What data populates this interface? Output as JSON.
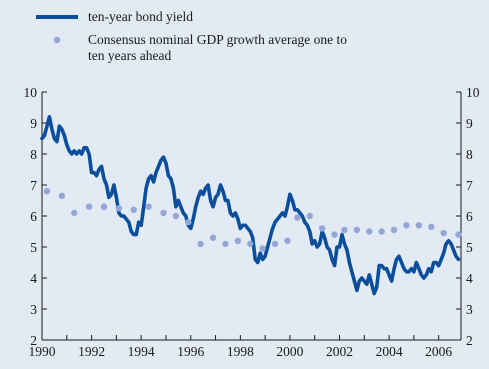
{
  "legend": {
    "series_0": "ten-year bond yield",
    "series_1_line1": "Consensus nominal GDP growth average one to",
    "series_1_line2": "ten years ahead"
  },
  "colors": {
    "background": "#e2eaf3",
    "bond_line": "#0b4f9c",
    "consensus_dots": "#93a6d6",
    "axis": "#1a1a1a"
  },
  "chart_data": {
    "type": "line",
    "title": "",
    "xlabel": "",
    "ylabel": "",
    "xlim": [
      1990,
      2006.9
    ],
    "ylim": [
      2,
      10
    ],
    "x_ticks": [
      "1990",
      "1992",
      "1994",
      "1996",
      "1998",
      "2000",
      "2002",
      "2004",
      "2006"
    ],
    "y_ticks": [
      "2",
      "3",
      "4",
      "5",
      "6",
      "7",
      "8",
      "9",
      "10"
    ],
    "grid": false,
    "legend_position": "top-left",
    "series": [
      {
        "name": "ten-year bond yield",
        "style": "line",
        "points": [
          [
            1990.0,
            8.5
          ],
          [
            1990.1,
            8.6
          ],
          [
            1990.2,
            8.9
          ],
          [
            1990.3,
            9.2
          ],
          [
            1990.4,
            8.8
          ],
          [
            1990.5,
            8.5
          ],
          [
            1990.6,
            8.4
          ],
          [
            1990.7,
            8.9
          ],
          [
            1990.8,
            8.8
          ],
          [
            1990.9,
            8.6
          ],
          [
            1991.0,
            8.3
          ],
          [
            1991.1,
            8.1
          ],
          [
            1991.2,
            8.0
          ],
          [
            1991.3,
            8.1
          ],
          [
            1991.4,
            8.0
          ],
          [
            1991.5,
            8.1
          ],
          [
            1991.6,
            8.0
          ],
          [
            1991.7,
            8.2
          ],
          [
            1991.8,
            8.2
          ],
          [
            1991.9,
            8.0
          ],
          [
            1992.0,
            7.4
          ],
          [
            1992.1,
            7.4
          ],
          [
            1992.2,
            7.3
          ],
          [
            1992.3,
            7.5
          ],
          [
            1992.4,
            7.6
          ],
          [
            1992.5,
            7.2
          ],
          [
            1992.6,
            7.0
          ],
          [
            1992.7,
            6.6
          ],
          [
            1992.8,
            6.7
          ],
          [
            1992.9,
            7.0
          ],
          [
            1993.0,
            6.6
          ],
          [
            1993.1,
            6.1
          ],
          [
            1993.2,
            6.0
          ],
          [
            1993.3,
            6.0
          ],
          [
            1993.4,
            5.9
          ],
          [
            1993.5,
            5.8
          ],
          [
            1993.6,
            5.5
          ],
          [
            1993.7,
            5.4
          ],
          [
            1993.8,
            5.4
          ],
          [
            1993.9,
            5.8
          ],
          [
            1994.0,
            5.7
          ],
          [
            1994.1,
            6.3
          ],
          [
            1994.2,
            6.9
          ],
          [
            1994.3,
            7.2
          ],
          [
            1994.4,
            7.3
          ],
          [
            1994.5,
            7.1
          ],
          [
            1994.6,
            7.4
          ],
          [
            1994.7,
            7.6
          ],
          [
            1994.8,
            7.8
          ],
          [
            1994.9,
            7.9
          ],
          [
            1995.0,
            7.7
          ],
          [
            1995.1,
            7.3
          ],
          [
            1995.2,
            7.2
          ],
          [
            1995.3,
            6.9
          ],
          [
            1995.4,
            6.3
          ],
          [
            1995.5,
            6.5
          ],
          [
            1995.6,
            6.3
          ],
          [
            1995.7,
            6.1
          ],
          [
            1995.8,
            6.0
          ],
          [
            1995.9,
            5.7
          ],
          [
            1996.0,
            5.6
          ],
          [
            1996.1,
            5.9
          ],
          [
            1996.2,
            6.3
          ],
          [
            1996.3,
            6.6
          ],
          [
            1996.4,
            6.8
          ],
          [
            1996.5,
            6.7
          ],
          [
            1996.6,
            6.9
          ],
          [
            1996.7,
            7.0
          ],
          [
            1996.8,
            6.5
          ],
          [
            1996.9,
            6.3
          ],
          [
            1997.0,
            6.6
          ],
          [
            1997.1,
            6.7
          ],
          [
            1997.2,
            7.0
          ],
          [
            1997.3,
            6.8
          ],
          [
            1997.4,
            6.5
          ],
          [
            1997.5,
            6.5
          ],
          [
            1997.6,
            6.1
          ],
          [
            1997.7,
            6.0
          ],
          [
            1997.8,
            6.1
          ],
          [
            1997.9,
            5.9
          ],
          [
            1998.0,
            5.6
          ],
          [
            1998.1,
            5.7
          ],
          [
            1998.2,
            5.7
          ],
          [
            1998.3,
            5.6
          ],
          [
            1998.4,
            5.5
          ],
          [
            1998.5,
            5.3
          ],
          [
            1998.6,
            4.6
          ],
          [
            1998.7,
            4.5
          ],
          [
            1998.8,
            4.8
          ],
          [
            1998.9,
            4.6
          ],
          [
            1999.0,
            4.7
          ],
          [
            1999.1,
            5.0
          ],
          [
            1999.2,
            5.3
          ],
          [
            1999.3,
            5.6
          ],
          [
            1999.4,
            5.8
          ],
          [
            1999.5,
            5.9
          ],
          [
            1999.6,
            6.0
          ],
          [
            1999.7,
            6.1
          ],
          [
            1999.8,
            6.0
          ],
          [
            1999.9,
            6.3
          ],
          [
            2000.0,
            6.7
          ],
          [
            2000.1,
            6.5
          ],
          [
            2000.2,
            6.2
          ],
          [
            2000.3,
            6.2
          ],
          [
            2000.4,
            6.1
          ],
          [
            2000.5,
            6.0
          ],
          [
            2000.6,
            5.8
          ],
          [
            2000.7,
            5.7
          ],
          [
            2000.8,
            5.5
          ],
          [
            2000.9,
            5.1
          ],
          [
            2001.0,
            5.2
          ],
          [
            2001.1,
            5.0
          ],
          [
            2001.2,
            5.1
          ],
          [
            2001.3,
            5.5
          ],
          [
            2001.4,
            5.3
          ],
          [
            2001.5,
            5.0
          ],
          [
            2001.6,
            4.9
          ],
          [
            2001.7,
            4.6
          ],
          [
            2001.8,
            4.4
          ],
          [
            2001.9,
            5.0
          ],
          [
            2002.0,
            5.0
          ],
          [
            2002.1,
            5.4
          ],
          [
            2002.2,
            5.1
          ],
          [
            2002.3,
            4.9
          ],
          [
            2002.4,
            4.5
          ],
          [
            2002.5,
            4.2
          ],
          [
            2002.6,
            3.9
          ],
          [
            2002.7,
            3.6
          ],
          [
            2002.8,
            3.9
          ],
          [
            2002.9,
            4.0
          ],
          [
            2003.0,
            3.9
          ],
          [
            2003.1,
            3.8
          ],
          [
            2003.2,
            4.1
          ],
          [
            2003.3,
            3.8
          ],
          [
            2003.4,
            3.5
          ],
          [
            2003.5,
            3.7
          ],
          [
            2003.6,
            4.4
          ],
          [
            2003.7,
            4.4
          ],
          [
            2003.8,
            4.3
          ],
          [
            2003.9,
            4.3
          ],
          [
            2004.0,
            4.1
          ],
          [
            2004.1,
            3.9
          ],
          [
            2004.2,
            4.3
          ],
          [
            2004.3,
            4.6
          ],
          [
            2004.4,
            4.7
          ],
          [
            2004.5,
            4.5
          ],
          [
            2004.6,
            4.3
          ],
          [
            2004.7,
            4.2
          ],
          [
            2004.8,
            4.2
          ],
          [
            2004.9,
            4.3
          ],
          [
            2005.0,
            4.2
          ],
          [
            2005.1,
            4.5
          ],
          [
            2005.2,
            4.3
          ],
          [
            2005.3,
            4.1
          ],
          [
            2005.4,
            4.0
          ],
          [
            2005.5,
            4.1
          ],
          [
            2005.6,
            4.3
          ],
          [
            2005.7,
            4.2
          ],
          [
            2005.8,
            4.5
          ],
          [
            2005.9,
            4.5
          ],
          [
            2006.0,
            4.4
          ],
          [
            2006.1,
            4.6
          ],
          [
            2006.2,
            4.8
          ],
          [
            2006.3,
            5.1
          ],
          [
            2006.4,
            5.2
          ],
          [
            2006.5,
            5.1
          ],
          [
            2006.6,
            4.9
          ],
          [
            2006.7,
            4.7
          ],
          [
            2006.8,
            4.6
          ]
        ]
      },
      {
        "name": "Consensus nominal GDP growth average one to ten years ahead",
        "style": "dots",
        "points": [
          [
            1990.2,
            6.8
          ],
          [
            1990.8,
            6.65
          ],
          [
            1991.3,
            6.1
          ],
          [
            1991.9,
            6.3
          ],
          [
            1992.5,
            6.3
          ],
          [
            1993.1,
            6.25
          ],
          [
            1993.7,
            6.2
          ],
          [
            1994.3,
            6.3
          ],
          [
            1994.9,
            6.1
          ],
          [
            1995.4,
            6.0
          ],
          [
            1995.9,
            5.8
          ],
          [
            1996.4,
            5.1
          ],
          [
            1996.9,
            5.3
          ],
          [
            1997.4,
            5.1
          ],
          [
            1997.9,
            5.2
          ],
          [
            1998.4,
            5.1
          ],
          [
            1998.9,
            4.95
          ],
          [
            1999.4,
            5.1
          ],
          [
            1999.9,
            5.2
          ],
          [
            2000.3,
            5.95
          ],
          [
            2000.8,
            6.0
          ],
          [
            2001.3,
            5.6
          ],
          [
            2001.8,
            5.4
          ],
          [
            2002.2,
            5.55
          ],
          [
            2002.7,
            5.55
          ],
          [
            2003.2,
            5.5
          ],
          [
            2003.7,
            5.5
          ],
          [
            2004.2,
            5.55
          ],
          [
            2004.7,
            5.7
          ],
          [
            2005.2,
            5.7
          ],
          [
            2005.7,
            5.65
          ],
          [
            2006.2,
            5.45
          ],
          [
            2006.8,
            5.4
          ]
        ]
      }
    ]
  }
}
